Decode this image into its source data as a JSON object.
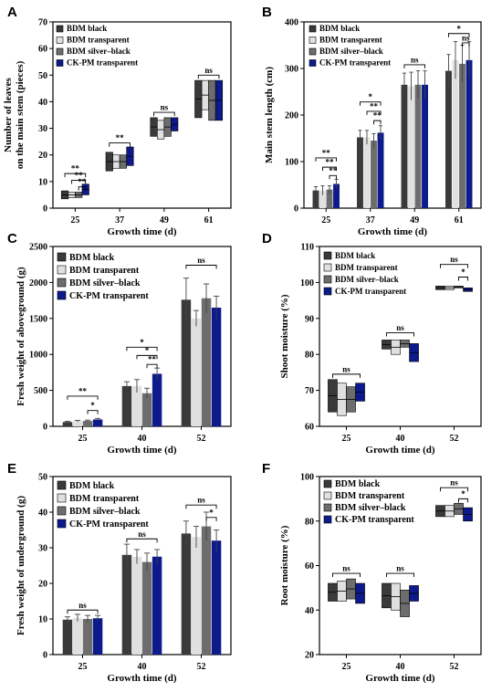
{
  "colors": {
    "BDM black": "#3a3a3a",
    "BDM transparent": "#e0e0e0",
    "BDM silver–black": "#6d6d6d",
    "CK-PM transparent": "#0c1a8c"
  },
  "panels": [
    {
      "label": "A"
    },
    {
      "label": "B"
    },
    {
      "label": "C"
    },
    {
      "label": "D"
    },
    {
      "label": "E"
    },
    {
      "label": "F"
    }
  ],
  "chart_data": [
    {
      "panel": "A",
      "type": "floating-bar",
      "ylabel": "Number of leaves on the main stem (pieces)",
      "ylabel_lines": [
        "Number of leaves",
        "on the main stem (pieces)"
      ],
      "xlabel": "Growth time  (d)",
      "ylim": [
        0,
        70
      ],
      "yticks": [
        0,
        10,
        20,
        30,
        40,
        50,
        60,
        70
      ],
      "categories": [
        "25",
        "37",
        "49",
        "61"
      ],
      "legend": [
        "BDM black",
        "BDM transparent",
        "BDM silver–black",
        "CK-PM transparent"
      ],
      "series": [
        {
          "name": "BDM black",
          "ranges": [
            [
              3.5,
              6.5
            ],
            [
              14,
              21
            ],
            [
              27,
              34
            ],
            [
              34,
              48
            ]
          ]
        },
        {
          "name": "BDM transparent",
          "ranges": [
            [
              4,
              6
            ],
            [
              15,
              20
            ],
            [
              26,
              33
            ],
            [
              37,
              48
            ]
          ]
        },
        {
          "name": "BDM silver–black",
          "ranges": [
            [
              4,
              6
            ],
            [
              15,
              20
            ],
            [
              27,
              34
            ],
            [
              33,
              48
            ]
          ]
        },
        {
          "name": "CK-PM transparent",
          "ranges": [
            [
              5,
              9
            ],
            [
              16,
              23
            ],
            [
              29,
              34
            ],
            [
              33,
              48
            ]
          ]
        }
      ],
      "significance": [
        {
          "cat": 0,
          "from": 0,
          "to": 3,
          "y": 13,
          "text": "**"
        },
        {
          "cat": 0,
          "from": 1,
          "to": 3,
          "y": 10.5,
          "text": "**"
        },
        {
          "cat": 0,
          "from": 2,
          "to": 3,
          "y": 8,
          "text": "**"
        },
        {
          "cat": 1,
          "from": 0,
          "to": 3,
          "y": 24.5,
          "text": "**"
        },
        {
          "cat": 2,
          "from": 0,
          "to": 3,
          "y": 36,
          "text": "ns"
        },
        {
          "cat": 3,
          "from": 0,
          "to": 3,
          "y": 50,
          "text": "ns"
        }
      ]
    },
    {
      "panel": "B",
      "type": "bar",
      "ylabel": "Main stem length (cm)",
      "xlabel": "Growth time  (d)",
      "ylim": [
        0,
        400
      ],
      "yticks": [
        0,
        100,
        200,
        300,
        400
      ],
      "categories": [
        "25",
        "37",
        "49",
        "61"
      ],
      "legend": [
        "BDM black",
        "BDM transparent",
        "BDM silver–black",
        "CK-PM transparent"
      ],
      "series": [
        {
          "name": "BDM black",
          "values": [
            38,
            152,
            265,
            295
          ],
          "errors": [
            8,
            15,
            25,
            35
          ]
        },
        {
          "name": "BDM transparent",
          "values": [
            38,
            152,
            262,
            318
          ],
          "errors": [
            10,
            15,
            30,
            40
          ]
        },
        {
          "name": "BDM silver–black",
          "values": [
            40,
            145,
            265,
            310
          ],
          "errors": [
            8,
            15,
            30,
            40
          ]
        },
        {
          "name": "CK-PM transparent",
          "values": [
            52,
            162,
            265,
            318
          ],
          "errors": [
            10,
            15,
            30,
            40
          ]
        }
      ],
      "significance": [
        {
          "cat": 0,
          "from": 0,
          "to": 3,
          "y": 108,
          "text": "**"
        },
        {
          "cat": 0,
          "from": 1,
          "to": 3,
          "y": 88,
          "text": "**"
        },
        {
          "cat": 0,
          "from": 2,
          "to": 3,
          "y": 70,
          "text": "**"
        },
        {
          "cat": 1,
          "from": 0,
          "to": 3,
          "y": 228,
          "text": "*"
        },
        {
          "cat": 1,
          "from": 1,
          "to": 3,
          "y": 208,
          "text": "**"
        },
        {
          "cat": 1,
          "from": 2,
          "to": 3,
          "y": 188,
          "text": "**"
        },
        {
          "cat": 2,
          "from": 0,
          "to": 3,
          "y": 308,
          "text": "ns"
        },
        {
          "cat": 3,
          "from": 0,
          "to": 3,
          "y": 375,
          "text": "*"
        },
        {
          "cat": 3,
          "from": 2,
          "to": 3,
          "y": 355,
          "text": "ns"
        }
      ]
    },
    {
      "panel": "C",
      "type": "bar",
      "ylabel": "Fresh weight of aboveground (g)",
      "xlabel": "Growth time  (d)",
      "ylim": [
        0,
        2500
      ],
      "yticks": [
        0,
        500,
        1000,
        1500,
        2000,
        2500
      ],
      "categories": [
        "25",
        "40",
        "52"
      ],
      "legend": [
        "BDM black",
        "BDM transparent",
        "BDM silver–black",
        "CK-PM transparent"
      ],
      "series": [
        {
          "name": "BDM black",
          "values": [
            60,
            560,
            1760
          ],
          "errors": [
            10,
            60,
            300
          ]
        },
        {
          "name": "BDM transparent",
          "values": [
            70,
            560,
            1500
          ],
          "errors": [
            12,
            90,
            110
          ]
        },
        {
          "name": "BDM silver–black",
          "values": [
            75,
            460,
            1780
          ],
          "errors": [
            12,
            70,
            200
          ]
        },
        {
          "name": "CK-PM transparent",
          "values": [
            95,
            730,
            1650
          ],
          "errors": [
            15,
            80,
            160
          ]
        }
      ],
      "significance": [
        {
          "cat": 0,
          "from": 0,
          "to": 3,
          "y": 420,
          "text": "**"
        },
        {
          "cat": 0,
          "from": 2,
          "to": 3,
          "y": 220,
          "text": "*"
        },
        {
          "cat": 1,
          "from": 0,
          "to": 3,
          "y": 1100,
          "text": "*"
        },
        {
          "cat": 1,
          "from": 1,
          "to": 3,
          "y": 985,
          "text": "*"
        },
        {
          "cat": 1,
          "from": 2,
          "to": 3,
          "y": 860,
          "text": "**"
        },
        {
          "cat": 2,
          "from": 0,
          "to": 3,
          "y": 2240,
          "text": "ns"
        }
      ]
    },
    {
      "panel": "D",
      "type": "floating-bar",
      "ylabel": "Shoot moisture (%)",
      "xlabel": "Growth time  (d)",
      "ylim": [
        60,
        110
      ],
      "yticks": [
        60,
        70,
        80,
        90,
        100,
        110
      ],
      "categories": [
        "25",
        "40",
        "52"
      ],
      "legend": [
        "BDM black",
        "BDM transparent",
        "BDM silver–black",
        "CK-PM transparent"
      ],
      "series": [
        {
          "name": "BDM black",
          "ranges": [
            [
              64,
              73
            ],
            [
              81.5,
              84
            ],
            [
              98,
              99
            ]
          ]
        },
        {
          "name": "BDM transparent",
          "ranges": [
            [
              63,
              72
            ],
            [
              80,
              84
            ],
            [
              98,
              99
            ]
          ]
        },
        {
          "name": "BDM silver–black",
          "ranges": [
            [
              64,
              71
            ],
            [
              82,
              84
            ],
            [
              98.5,
              99
            ]
          ]
        },
        {
          "name": "CK-PM transparent",
          "ranges": [
            [
              67,
              72
            ],
            [
              78,
              83
            ],
            [
              97.5,
              98.5
            ]
          ]
        }
      ],
      "significance": [
        {
          "cat": 0,
          "from": 0,
          "to": 3,
          "y": 74.5,
          "text": "ns"
        },
        {
          "cat": 1,
          "from": 0,
          "to": 3,
          "y": 86,
          "text": "ns"
        },
        {
          "cat": 2,
          "from": 0,
          "to": 3,
          "y": 105,
          "text": "ns"
        },
        {
          "cat": 2,
          "from": 2,
          "to": 3,
          "y": 101.5,
          "text": "*"
        }
      ]
    },
    {
      "panel": "E",
      "type": "bar",
      "ylabel": "Fresh weight of underground (g)",
      "xlabel": "Growth time  (d)",
      "ylim": [
        0,
        50
      ],
      "yticks": [
        0,
        10,
        20,
        30,
        40,
        50
      ],
      "categories": [
        "25",
        "40",
        "52"
      ],
      "legend": [
        "BDM black",
        "BDM transparent",
        "BDM silver–black",
        "CK-PM transparent"
      ],
      "series": [
        {
          "name": "BDM black",
          "values": [
            9.8,
            28,
            34
          ],
          "errors": [
            0.8,
            3,
            3.5
          ]
        },
        {
          "name": "BDM transparent",
          "values": [
            10.3,
            27.5,
            33
          ],
          "errors": [
            1,
            2,
            3
          ]
        },
        {
          "name": "BDM silver–black",
          "values": [
            10,
            26,
            36
          ],
          "errors": [
            1,
            2.5,
            4
          ]
        },
        {
          "name": "CK-PM transparent",
          "values": [
            10.2,
            27.5,
            32
          ],
          "errors": [
            0.8,
            2,
            3
          ]
        }
      ],
      "significance": [
        {
          "cat": 0,
          "from": 0,
          "to": 3,
          "y": 12.5,
          "text": "ns"
        },
        {
          "cat": 1,
          "from": 0,
          "to": 3,
          "y": 32.5,
          "text": "ns"
        },
        {
          "cat": 2,
          "from": 0,
          "to": 3,
          "y": 42,
          "text": "ns"
        },
        {
          "cat": 2,
          "from": 2,
          "to": 3,
          "y": 38.5,
          "text": "*"
        }
      ]
    },
    {
      "panel": "F",
      "type": "floating-bar",
      "ylabel": "Root moisture (%)",
      "xlabel": "Growth time (d)",
      "ylim": [
        20,
        100
      ],
      "yticks": [
        20,
        40,
        60,
        80,
        100
      ],
      "categories": [
        "25",
        "40",
        "52"
      ],
      "legend": [
        "BDM black",
        "BDM transparent",
        "BDM silver–black",
        "CK-PM transparent"
      ],
      "series": [
        {
          "name": "BDM black",
          "ranges": [
            [
              44,
              52
            ],
            [
              41,
              52
            ],
            [
              82,
              87
            ]
          ]
        },
        {
          "name": "BDM transparent",
          "ranges": [
            [
              44,
              53
            ],
            [
              40,
              52
            ],
            [
              82,
              87
            ]
          ]
        },
        {
          "name": "BDM silver–black",
          "ranges": [
            [
              45,
              54
            ],
            [
              37,
              49
            ],
            [
              83,
              88
            ]
          ]
        },
        {
          "name": "CK-PM transparent",
          "ranges": [
            [
              43,
              52
            ],
            [
              44,
              51
            ],
            [
              80,
              86
            ]
          ]
        }
      ],
      "significance": [
        {
          "cat": 0,
          "from": 0,
          "to": 3,
          "y": 56.5,
          "text": "ns"
        },
        {
          "cat": 1,
          "from": 0,
          "to": 3,
          "y": 56.5,
          "text": "ns"
        },
        {
          "cat": 2,
          "from": 0,
          "to": 3,
          "y": 95,
          "text": "ns"
        },
        {
          "cat": 2,
          "from": 2,
          "to": 3,
          "y": 90,
          "text": "*"
        }
      ]
    }
  ]
}
